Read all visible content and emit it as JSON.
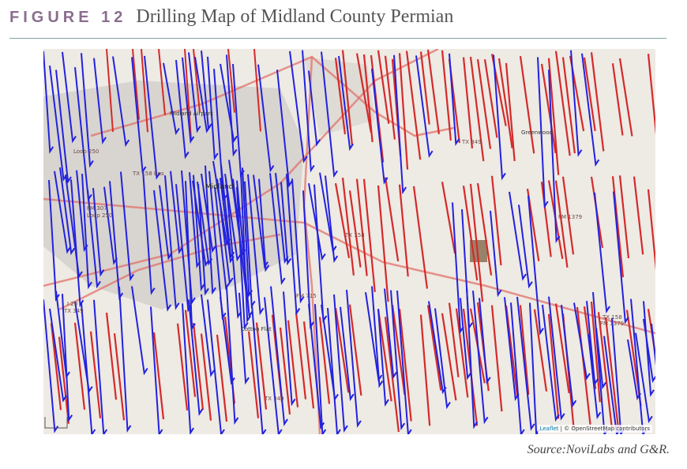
{
  "header": {
    "figure_label": "FIGURE 12",
    "title": "Drilling Map of Midland County Permian"
  },
  "map": {
    "attribution_leaflet": "Leaflet",
    "attribution_rest": " | © OpenStreetMap contributors",
    "colors": {
      "well_blue": "#2222dd",
      "well_red": "#d42a2a",
      "road": "#e0726a",
      "urban": "#cfcbc6",
      "background": "#eeeae4"
    },
    "places": [
      {
        "name": "Midland",
        "kind": "city"
      },
      {
        "name": "Midland Airpark",
        "kind": "place"
      },
      {
        "name": "Greenwood",
        "kind": "place"
      },
      {
        "name": "Cotton Flat",
        "kind": "place"
      },
      {
        "name": "Loop 250",
        "kind": "road"
      },
      {
        "name": "TX 158 Bus",
        "kind": "road"
      },
      {
        "name": "TX 158",
        "kind": "road"
      },
      {
        "name": "FM 1379",
        "kind": "road"
      },
      {
        "name": "FM 715",
        "kind": "road"
      },
      {
        "name": "I 20",
        "kind": "road"
      },
      {
        "name": "TX 349",
        "kind": "road"
      },
      {
        "name": "FM 307",
        "kind": "road"
      },
      {
        "name": "Loop 250",
        "kind": "road"
      },
      {
        "name": "TX 158",
        "kind": "road"
      },
      {
        "name": "FM 1379",
        "kind": "road"
      },
      {
        "name": "TX 349",
        "kind": "road"
      }
    ]
  },
  "source": "Source:NoviLabs and G&R."
}
